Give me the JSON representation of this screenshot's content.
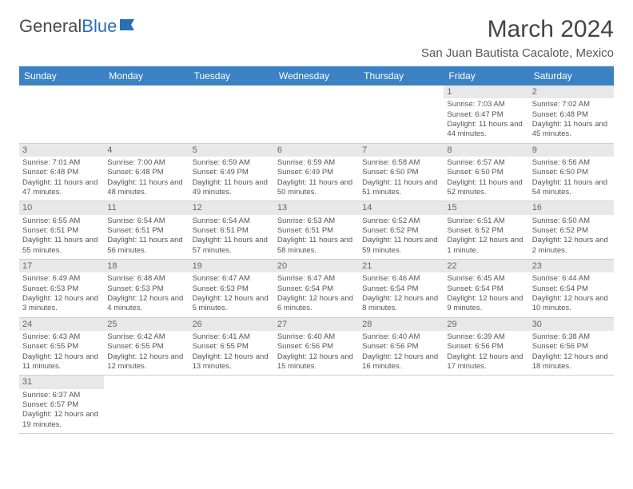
{
  "logo": {
    "text1": "General",
    "text2": "Blue"
  },
  "title": "March 2024",
  "location": "San Juan Bautista Cacalote, Mexico",
  "colors": {
    "header_bg": "#3b82c4",
    "header_text": "#ffffff",
    "daynum_bg": "#e8e8e8",
    "text": "#555555"
  },
  "day_headers": [
    "Sunday",
    "Monday",
    "Tuesday",
    "Wednesday",
    "Thursday",
    "Friday",
    "Saturday"
  ],
  "weeks": [
    [
      null,
      null,
      null,
      null,
      null,
      {
        "n": "1",
        "sr": "Sunrise: 7:03 AM",
        "ss": "Sunset: 6:47 PM",
        "dl": "Daylight: 11 hours and 44 minutes."
      },
      {
        "n": "2",
        "sr": "Sunrise: 7:02 AM",
        "ss": "Sunset: 6:48 PM",
        "dl": "Daylight: 11 hours and 45 minutes."
      }
    ],
    [
      {
        "n": "3",
        "sr": "Sunrise: 7:01 AM",
        "ss": "Sunset: 6:48 PM",
        "dl": "Daylight: 11 hours and 47 minutes."
      },
      {
        "n": "4",
        "sr": "Sunrise: 7:00 AM",
        "ss": "Sunset: 6:48 PM",
        "dl": "Daylight: 11 hours and 48 minutes."
      },
      {
        "n": "5",
        "sr": "Sunrise: 6:59 AM",
        "ss": "Sunset: 6:49 PM",
        "dl": "Daylight: 11 hours and 49 minutes."
      },
      {
        "n": "6",
        "sr": "Sunrise: 6:59 AM",
        "ss": "Sunset: 6:49 PM",
        "dl": "Daylight: 11 hours and 50 minutes."
      },
      {
        "n": "7",
        "sr": "Sunrise: 6:58 AM",
        "ss": "Sunset: 6:50 PM",
        "dl": "Daylight: 11 hours and 51 minutes."
      },
      {
        "n": "8",
        "sr": "Sunrise: 6:57 AM",
        "ss": "Sunset: 6:50 PM",
        "dl": "Daylight: 11 hours and 52 minutes."
      },
      {
        "n": "9",
        "sr": "Sunrise: 6:56 AM",
        "ss": "Sunset: 6:50 PM",
        "dl": "Daylight: 11 hours and 54 minutes."
      }
    ],
    [
      {
        "n": "10",
        "sr": "Sunrise: 6:55 AM",
        "ss": "Sunset: 6:51 PM",
        "dl": "Daylight: 11 hours and 55 minutes."
      },
      {
        "n": "11",
        "sr": "Sunrise: 6:54 AM",
        "ss": "Sunset: 6:51 PM",
        "dl": "Daylight: 11 hours and 56 minutes."
      },
      {
        "n": "12",
        "sr": "Sunrise: 6:54 AM",
        "ss": "Sunset: 6:51 PM",
        "dl": "Daylight: 11 hours and 57 minutes."
      },
      {
        "n": "13",
        "sr": "Sunrise: 6:53 AM",
        "ss": "Sunset: 6:51 PM",
        "dl": "Daylight: 11 hours and 58 minutes."
      },
      {
        "n": "14",
        "sr": "Sunrise: 6:52 AM",
        "ss": "Sunset: 6:52 PM",
        "dl": "Daylight: 11 hours and 59 minutes."
      },
      {
        "n": "15",
        "sr": "Sunrise: 6:51 AM",
        "ss": "Sunset: 6:52 PM",
        "dl": "Daylight: 12 hours and 1 minute."
      },
      {
        "n": "16",
        "sr": "Sunrise: 6:50 AM",
        "ss": "Sunset: 6:52 PM",
        "dl": "Daylight: 12 hours and 2 minutes."
      }
    ],
    [
      {
        "n": "17",
        "sr": "Sunrise: 6:49 AM",
        "ss": "Sunset: 6:53 PM",
        "dl": "Daylight: 12 hours and 3 minutes."
      },
      {
        "n": "18",
        "sr": "Sunrise: 6:48 AM",
        "ss": "Sunset: 6:53 PM",
        "dl": "Daylight: 12 hours and 4 minutes."
      },
      {
        "n": "19",
        "sr": "Sunrise: 6:47 AM",
        "ss": "Sunset: 6:53 PM",
        "dl": "Daylight: 12 hours and 5 minutes."
      },
      {
        "n": "20",
        "sr": "Sunrise: 6:47 AM",
        "ss": "Sunset: 6:54 PM",
        "dl": "Daylight: 12 hours and 6 minutes."
      },
      {
        "n": "21",
        "sr": "Sunrise: 6:46 AM",
        "ss": "Sunset: 6:54 PM",
        "dl": "Daylight: 12 hours and 8 minutes."
      },
      {
        "n": "22",
        "sr": "Sunrise: 6:45 AM",
        "ss": "Sunset: 6:54 PM",
        "dl": "Daylight: 12 hours and 9 minutes."
      },
      {
        "n": "23",
        "sr": "Sunrise: 6:44 AM",
        "ss": "Sunset: 6:54 PM",
        "dl": "Daylight: 12 hours and 10 minutes."
      }
    ],
    [
      {
        "n": "24",
        "sr": "Sunrise: 6:43 AM",
        "ss": "Sunset: 6:55 PM",
        "dl": "Daylight: 12 hours and 11 minutes."
      },
      {
        "n": "25",
        "sr": "Sunrise: 6:42 AM",
        "ss": "Sunset: 6:55 PM",
        "dl": "Daylight: 12 hours and 12 minutes."
      },
      {
        "n": "26",
        "sr": "Sunrise: 6:41 AM",
        "ss": "Sunset: 6:55 PM",
        "dl": "Daylight: 12 hours and 13 minutes."
      },
      {
        "n": "27",
        "sr": "Sunrise: 6:40 AM",
        "ss": "Sunset: 6:56 PM",
        "dl": "Daylight: 12 hours and 15 minutes."
      },
      {
        "n": "28",
        "sr": "Sunrise: 6:40 AM",
        "ss": "Sunset: 6:56 PM",
        "dl": "Daylight: 12 hours and 16 minutes."
      },
      {
        "n": "29",
        "sr": "Sunrise: 6:39 AM",
        "ss": "Sunset: 6:56 PM",
        "dl": "Daylight: 12 hours and 17 minutes."
      },
      {
        "n": "30",
        "sr": "Sunrise: 6:38 AM",
        "ss": "Sunset: 6:56 PM",
        "dl": "Daylight: 12 hours and 18 minutes."
      }
    ],
    [
      {
        "n": "31",
        "sr": "Sunrise: 6:37 AM",
        "ss": "Sunset: 6:57 PM",
        "dl": "Daylight: 12 hours and 19 minutes."
      },
      null,
      null,
      null,
      null,
      null,
      null
    ]
  ]
}
